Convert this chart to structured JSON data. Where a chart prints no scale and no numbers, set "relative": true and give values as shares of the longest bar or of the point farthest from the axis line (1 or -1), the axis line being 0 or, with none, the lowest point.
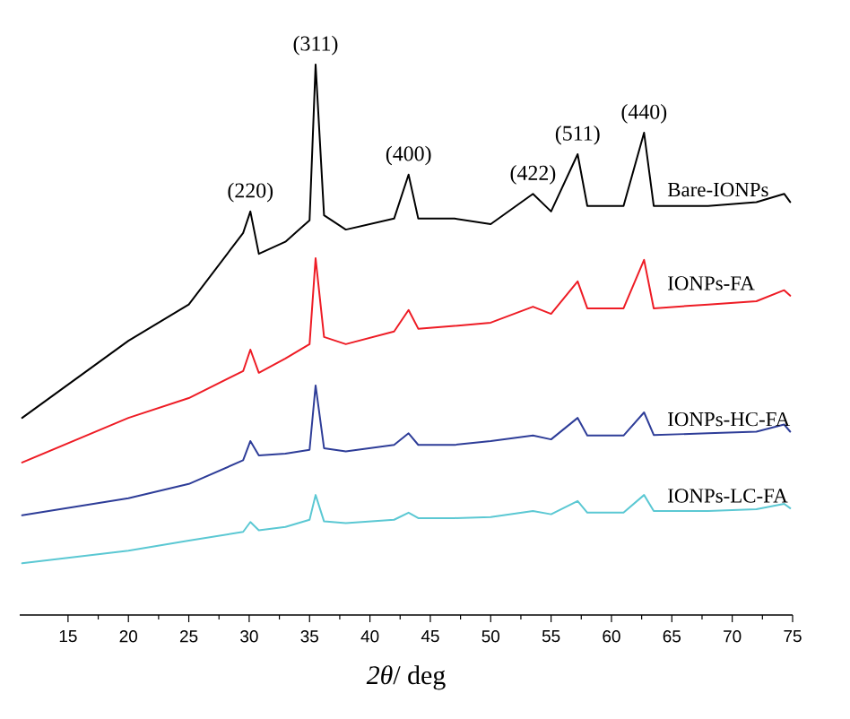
{
  "chart_data": {
    "type": "line",
    "relative": true,
    "xlabel": "*2θ*/ deg",
    "xlim": [
      11,
      75
    ],
    "xticks": [
      15,
      20,
      25,
      30,
      35,
      40,
      45,
      50,
      55,
      60,
      65,
      70,
      75
    ],
    "x": [
      11.2,
      20,
      25,
      29.5,
      30.1,
      30.8,
      33,
      35,
      35.5,
      36.2,
      38,
      42,
      43.2,
      44,
      47,
      50,
      53.5,
      55,
      57.2,
      58,
      61,
      62.7,
      63.5,
      68,
      72,
      74.3,
      74.8
    ],
    "series": [
      {
        "name": "Bare-IONPs",
        "color": "#000000",
        "values": [
          0.358,
          0.498,
          0.564,
          0.694,
          0.733,
          0.656,
          0.678,
          0.717,
          1.0,
          0.726,
          0.7,
          0.72,
          0.8,
          0.72,
          0.72,
          0.71,
          0.765,
          0.733,
          0.837,
          0.743,
          0.743,
          0.876,
          0.743,
          0.743,
          0.75,
          0.765,
          0.75
        ]
      },
      {
        "name": "IONPs-FA",
        "color": "#ee1c25",
        "values": [
          0.277,
          0.358,
          0.394,
          0.443,
          0.482,
          0.44,
          0.466,
          0.492,
          0.648,
          0.505,
          0.492,
          0.515,
          0.554,
          0.52,
          0.525,
          0.531,
          0.56,
          0.547,
          0.606,
          0.557,
          0.557,
          0.645,
          0.557,
          0.564,
          0.57,
          0.59,
          0.58
        ]
      },
      {
        "name": "IONPs-HC-FA",
        "color": "#2e3d98",
        "values": [
          0.181,
          0.212,
          0.238,
          0.281,
          0.316,
          0.29,
          0.293,
          0.3,
          0.417,
          0.303,
          0.297,
          0.309,
          0.33,
          0.309,
          0.309,
          0.316,
          0.326,
          0.319,
          0.358,
          0.326,
          0.326,
          0.368,
          0.327,
          0.33,
          0.333,
          0.346,
          0.333
        ]
      },
      {
        "name": "IONPs-LC-FA",
        "color": "#5bc8d3",
        "values": [
          0.094,
          0.117,
          0.135,
          0.151,
          0.169,
          0.154,
          0.16,
          0.173,
          0.218,
          0.17,
          0.167,
          0.173,
          0.186,
          0.176,
          0.176,
          0.178,
          0.189,
          0.183,
          0.207,
          0.186,
          0.186,
          0.218,
          0.189,
          0.189,
          0.192,
          0.202,
          0.194
        ]
      }
    ],
    "annotations": [
      {
        "text": "(220)",
        "x": 30.1,
        "y": 0.733
      },
      {
        "text": "(311)",
        "x": 35.5,
        "y": 1.0
      },
      {
        "text": "(400)",
        "x": 43.2,
        "y": 0.8
      },
      {
        "text": "(422)",
        "x": 53.5,
        "y": 0.765
      },
      {
        "text": "(511)",
        "x": 57.2,
        "y": 0.837
      },
      {
        "text": "(440)",
        "x": 62.7,
        "y": 0.876
      }
    ]
  }
}
